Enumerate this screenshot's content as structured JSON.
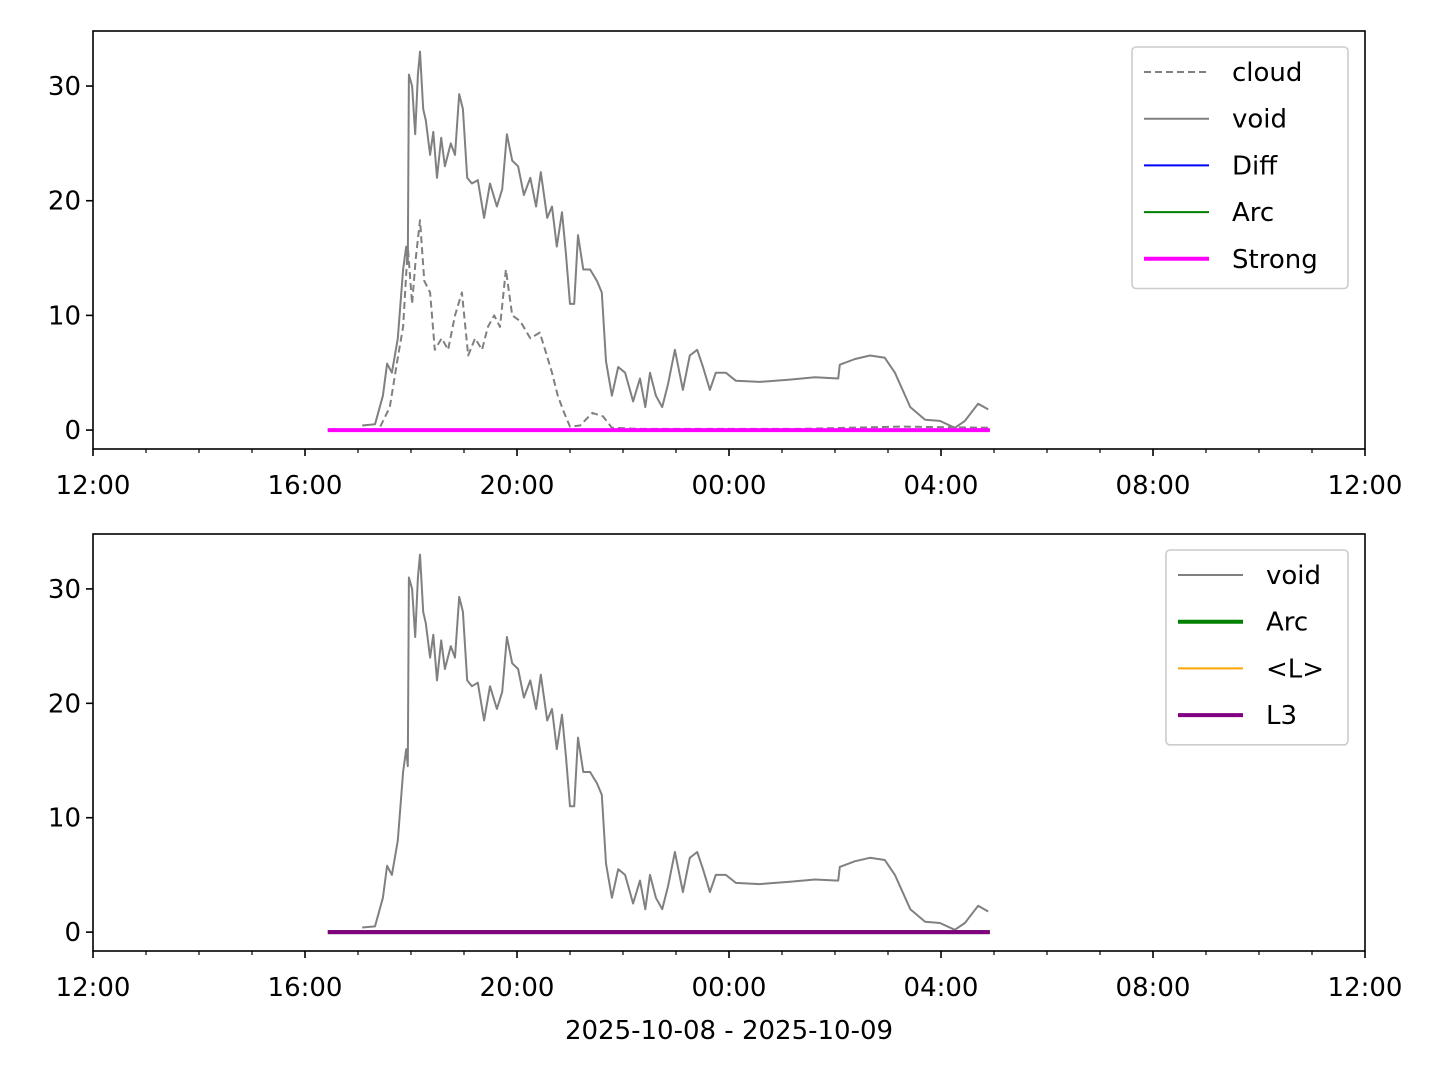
{
  "chart_data": [
    {
      "type": "line",
      "xlim": [
        0,
        24
      ],
      "ylim": [
        -1.65,
        34.8
      ],
      "xticks": [
        {
          "value": 0,
          "label": "12:00"
        },
        {
          "value": 4,
          "label": "16:00"
        },
        {
          "value": 8,
          "label": "20:00"
        },
        {
          "value": 12,
          "label": "00:00"
        },
        {
          "value": 16,
          "label": "04:00"
        },
        {
          "value": 20,
          "label": "08:00"
        },
        {
          "value": 24,
          "label": "12:00"
        }
      ],
      "xminorticks": [
        1,
        2,
        3,
        5,
        6,
        7,
        9,
        10,
        11,
        13,
        14,
        15,
        17,
        18,
        19,
        21,
        22,
        23
      ],
      "yticks": [
        0,
        10,
        20,
        30
      ],
      "legend": "upper right",
      "series": [
        {
          "name": "cloud",
          "color": "#808080",
          "linestyle": "dashed",
          "linewidth": 2,
          "x": [
            5.42,
            5.6,
            5.74,
            5.85,
            5.94,
            6.02,
            6.09,
            6.17,
            6.25,
            6.36,
            6.45,
            6.58,
            6.7,
            6.83,
            6.96,
            7.08,
            7.21,
            7.34,
            7.45,
            7.57,
            7.68,
            7.79,
            7.91,
            8.06,
            8.25,
            8.43,
            8.53,
            8.66,
            8.77,
            8.89,
            9.0,
            9.19,
            9.42,
            9.62,
            9.79,
            10.32,
            11.45,
            13.34,
            15.23,
            16.92
          ],
          "values": [
            0.3,
            2,
            6,
            9,
            16,
            11,
            15,
            18.3,
            13,
            12,
            7,
            8,
            7,
            10,
            12,
            6.5,
            8,
            7,
            9,
            10,
            9,
            14,
            10,
            9.5,
            8,
            8.5,
            7,
            5,
            3,
            1.5,
            0.3,
            0.4,
            1.5,
            1.2,
            0.2,
            0.1,
            0.1,
            0.1,
            0.3,
            0.2
          ]
        },
        {
          "name": "void",
          "color": "#808080",
          "linestyle": "solid",
          "linewidth": 2,
          "x": [
            5.08,
            5.32,
            5.47,
            5.55,
            5.64,
            5.75,
            5.85,
            5.91,
            5.94,
            5.96,
            6.02,
            6.08,
            6.13,
            6.17,
            6.23,
            6.28,
            6.36,
            6.42,
            6.49,
            6.57,
            6.64,
            6.75,
            6.83,
            6.91,
            6.98,
            7.06,
            7.15,
            7.26,
            7.38,
            7.49,
            7.62,
            7.72,
            7.81,
            7.91,
            8.02,
            8.13,
            8.25,
            8.36,
            8.45,
            8.57,
            8.66,
            8.75,
            8.85,
            8.92,
            9.0,
            9.08,
            9.15,
            9.25,
            9.38,
            9.51,
            9.6,
            9.68,
            9.79,
            9.91,
            10.04,
            10.19,
            10.32,
            10.42,
            10.51,
            10.62,
            10.74,
            10.85,
            10.98,
            11.13,
            11.26,
            11.4,
            11.51,
            11.64,
            11.75,
            11.94,
            12.13,
            12.58,
            13.15,
            13.62,
            14.06,
            14.09,
            14.38,
            14.66,
            14.94,
            15.13,
            15.42,
            15.7,
            15.98,
            16.26,
            16.45,
            16.7,
            16.89
          ],
          "values": [
            0.4,
            0.5,
            3,
            5.8,
            5,
            8,
            14,
            16,
            14.5,
            31,
            30,
            25.8,
            31,
            33,
            28,
            27,
            24,
            26,
            22,
            25.5,
            23,
            25,
            24,
            29.3,
            28,
            22,
            21.5,
            21.8,
            18.5,
            21.5,
            19.5,
            21,
            25.8,
            23.5,
            23,
            20.5,
            22,
            19.5,
            22.5,
            18.5,
            19.5,
            16,
            19,
            15.5,
            11,
            11,
            17,
            14,
            14,
            13,
            12,
            6,
            3,
            5.5,
            5,
            2.5,
            4.5,
            2,
            5,
            3,
            2,
            4,
            7,
            3.5,
            6.5,
            7,
            5.5,
            3.5,
            5,
            5,
            4.3,
            4.2,
            4.4,
            4.6,
            4.5,
            5.7,
            6.2,
            6.5,
            6.3,
            5,
            2,
            0.9,
            0.8,
            0.2,
            0.8,
            2.3,
            1.8
          ]
        },
        {
          "name": "Diff",
          "color": "#0000ff",
          "linestyle": "solid",
          "linewidth": 2,
          "x": [
            4.43,
            16.92
          ],
          "values": [
            0,
            0
          ]
        },
        {
          "name": "Arc",
          "color": "#008000",
          "linestyle": "solid",
          "linewidth": 2,
          "x": [
            4.43,
            16.92
          ],
          "values": [
            0,
            0
          ]
        },
        {
          "name": "Strong",
          "color": "#ff00ff",
          "linestyle": "solid",
          "linewidth": 4,
          "x": [
            4.43,
            16.92
          ],
          "values": [
            0,
            0
          ]
        }
      ]
    },
    {
      "type": "line",
      "xlim": [
        0,
        24
      ],
      "ylim": [
        -1.65,
        34.8
      ],
      "xlabel": "2025-10-08 - 2025-10-09",
      "xticks": [
        {
          "value": 0,
          "label": "12:00"
        },
        {
          "value": 4,
          "label": "16:00"
        },
        {
          "value": 8,
          "label": "20:00"
        },
        {
          "value": 12,
          "label": "00:00"
        },
        {
          "value": 16,
          "label": "04:00"
        },
        {
          "value": 20,
          "label": "08:00"
        },
        {
          "value": 24,
          "label": "12:00"
        }
      ],
      "xminorticks": [
        1,
        2,
        3,
        5,
        6,
        7,
        9,
        10,
        11,
        13,
        14,
        15,
        17,
        18,
        19,
        21,
        22,
        23
      ],
      "yticks": [
        0,
        10,
        20,
        30
      ],
      "legend": "upper right",
      "series": [
        {
          "name": "void",
          "color": "#808080",
          "linestyle": "solid",
          "linewidth": 2,
          "x": [
            5.08,
            5.32,
            5.47,
            5.55,
            5.64,
            5.75,
            5.85,
            5.91,
            5.94,
            5.96,
            6.02,
            6.08,
            6.13,
            6.17,
            6.23,
            6.28,
            6.36,
            6.42,
            6.49,
            6.57,
            6.64,
            6.75,
            6.83,
            6.91,
            6.98,
            7.06,
            7.15,
            7.26,
            7.38,
            7.49,
            7.62,
            7.72,
            7.81,
            7.91,
            8.02,
            8.13,
            8.25,
            8.36,
            8.45,
            8.57,
            8.66,
            8.75,
            8.85,
            8.92,
            9.0,
            9.08,
            9.15,
            9.25,
            9.38,
            9.51,
            9.6,
            9.68,
            9.79,
            9.91,
            10.04,
            10.19,
            10.32,
            10.42,
            10.51,
            10.62,
            10.74,
            10.85,
            10.98,
            11.13,
            11.26,
            11.4,
            11.51,
            11.64,
            11.75,
            11.94,
            12.13,
            12.58,
            13.15,
            13.62,
            14.06,
            14.09,
            14.38,
            14.66,
            14.94,
            15.13,
            15.42,
            15.7,
            15.98,
            16.26,
            16.45,
            16.7,
            16.89
          ],
          "values": [
            0.4,
            0.5,
            3,
            5.8,
            5,
            8,
            14,
            16,
            14.5,
            31,
            30,
            25.8,
            31,
            33,
            28,
            27,
            24,
            26,
            22,
            25.5,
            23,
            25,
            24,
            29.3,
            28,
            22,
            21.5,
            21.8,
            18.5,
            21.5,
            19.5,
            21,
            25.8,
            23.5,
            23,
            20.5,
            22,
            19.5,
            22.5,
            18.5,
            19.5,
            16,
            19,
            15.5,
            11,
            11,
            17,
            14,
            14,
            13,
            12,
            6,
            3,
            5.5,
            5,
            2.5,
            4.5,
            2,
            5,
            3,
            2,
            4,
            7,
            3.5,
            6.5,
            7,
            5.5,
            3.5,
            5,
            5,
            4.3,
            4.2,
            4.4,
            4.6,
            4.5,
            5.7,
            6.2,
            6.5,
            6.3,
            5,
            2,
            0.9,
            0.8,
            0.2,
            0.8,
            2.3,
            1.8
          ]
        },
        {
          "name": "Arc",
          "color": "#008000",
          "linestyle": "solid",
          "linewidth": 4,
          "x": [
            4.43,
            16.92
          ],
          "values": [
            0,
            0
          ]
        },
        {
          "name": "<L>",
          "color": "#ffa500",
          "linestyle": "solid",
          "linewidth": 2,
          "x": [
            4.43,
            16.92
          ],
          "values": [
            0,
            0
          ]
        },
        {
          "name": "L3",
          "color": "#800080",
          "linestyle": "solid",
          "linewidth": 4,
          "x": [
            4.43,
            16.92
          ],
          "values": [
            0,
            0
          ]
        }
      ]
    }
  ]
}
